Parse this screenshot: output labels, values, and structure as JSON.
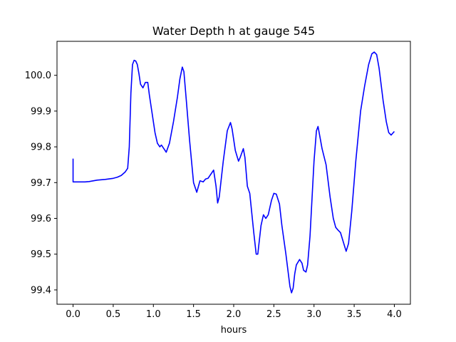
{
  "chart_data": {
    "type": "line",
    "title": "Water Depth h at gauge 545",
    "xlabel": "hours",
    "ylabel": "",
    "xlim": [
      -0.2,
      4.2
    ],
    "ylim": [
      99.36,
      100.095
    ],
    "xticks": [
      0.0,
      0.5,
      1.0,
      1.5,
      2.0,
      2.5,
      3.0,
      3.5,
      4.0
    ],
    "xtick_labels": [
      "0.0",
      "0.5",
      "1.0",
      "1.5",
      "2.0",
      "2.5",
      "3.0",
      "3.5",
      "4.0"
    ],
    "yticks": [
      99.4,
      99.5,
      99.6,
      99.7,
      99.8,
      99.9,
      100.0
    ],
    "ytick_labels": [
      "99.4",
      "99.5",
      "99.6",
      "99.7",
      "99.8",
      "99.9",
      "100.0"
    ],
    "grid": false,
    "series": [
      {
        "color": "#0000ff",
        "x": [
          0.0,
          0.0,
          0.05,
          0.1,
          0.15,
          0.2,
          0.25,
          0.3,
          0.4,
          0.5,
          0.55,
          0.6,
          0.65,
          0.68,
          0.7,
          0.72,
          0.74,
          0.76,
          0.78,
          0.8,
          0.82,
          0.84,
          0.87,
          0.9,
          0.93,
          0.95,
          0.98,
          1.02,
          1.05,
          1.08,
          1.1,
          1.13,
          1.16,
          1.2,
          1.25,
          1.3,
          1.33,
          1.36,
          1.38,
          1.41,
          1.45,
          1.5,
          1.54,
          1.58,
          1.62,
          1.65,
          1.68,
          1.72,
          1.75,
          1.78,
          1.8,
          1.82,
          1.87,
          1.92,
          1.96,
          1.98,
          2.02,
          2.06,
          2.08,
          2.12,
          2.14,
          2.17,
          2.2,
          2.25,
          2.28,
          2.3,
          2.34,
          2.37,
          2.4,
          2.43,
          2.47,
          2.5,
          2.53,
          2.57,
          2.6,
          2.65,
          2.7,
          2.72,
          2.74,
          2.76,
          2.78,
          2.82,
          2.85,
          2.87,
          2.9,
          2.92,
          2.95,
          3.0,
          3.03,
          3.05,
          3.08,
          3.1,
          3.15,
          3.2,
          3.24,
          3.27,
          3.3,
          3.33,
          3.37,
          3.4,
          3.43,
          3.47,
          3.52,
          3.58,
          3.63,
          3.68,
          3.72,
          3.75,
          3.78,
          3.81,
          3.86,
          3.9,
          3.93,
          3.96,
          3.98,
          4.0
        ],
        "y": [
          99.767,
          99.702,
          99.702,
          99.702,
          99.702,
          99.703,
          99.705,
          99.707,
          99.709,
          99.712,
          99.715,
          99.72,
          99.73,
          99.74,
          99.8,
          99.95,
          100.03,
          100.042,
          100.04,
          100.03,
          100.005,
          99.975,
          99.965,
          99.98,
          99.98,
          99.945,
          99.9,
          99.84,
          99.81,
          99.8,
          99.805,
          99.795,
          99.785,
          99.81,
          99.87,
          99.94,
          99.99,
          100.023,
          100.01,
          99.93,
          99.82,
          99.7,
          99.673,
          99.705,
          99.702,
          99.71,
          99.712,
          99.725,
          99.735,
          99.69,
          99.643,
          99.66,
          99.76,
          99.845,
          99.868,
          99.85,
          99.79,
          99.76,
          99.77,
          99.795,
          99.77,
          99.69,
          99.67,
          99.56,
          99.5,
          99.5,
          99.58,
          99.61,
          99.6,
          99.61,
          99.65,
          99.67,
          99.668,
          99.64,
          99.58,
          99.5,
          99.41,
          99.392,
          99.405,
          99.445,
          99.47,
          99.485,
          99.475,
          99.455,
          99.45,
          99.47,
          99.55,
          99.76,
          99.845,
          99.857,
          99.82,
          99.795,
          99.75,
          99.66,
          99.6,
          99.575,
          99.567,
          99.56,
          99.53,
          99.508,
          99.53,
          99.62,
          99.76,
          99.9,
          99.97,
          100.03,
          100.06,
          100.065,
          100.058,
          100.02,
          99.93,
          99.87,
          99.84,
          99.833,
          99.838,
          99.843
        ]
      }
    ]
  }
}
